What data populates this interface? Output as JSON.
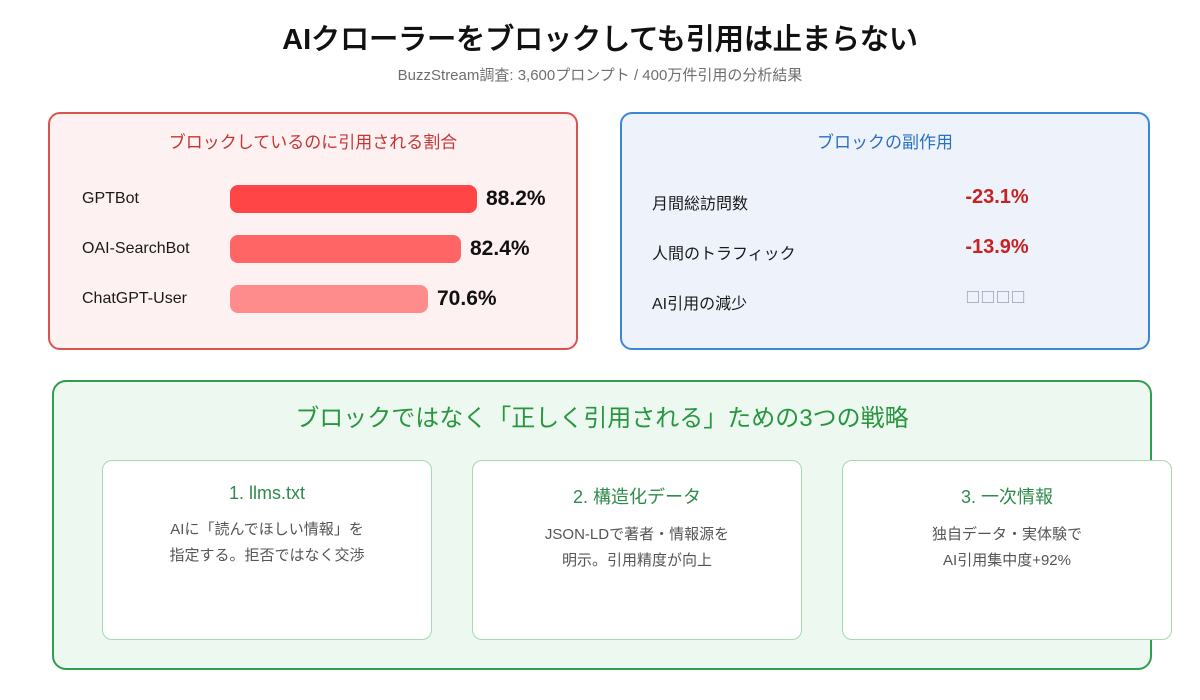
{
  "page": {
    "title": "AIクローラーをブロックしても引用は止まらない",
    "subtitle": "BuzzStream調査: 3,600プロンプト / 400万件引用の分析結果"
  },
  "colors": {
    "red_border": "#d9534f",
    "red_bg": "#fef1f1",
    "red_heading": "#c63434",
    "blue_border": "#3a87d8",
    "blue_bg": "#eef3fb",
    "blue_heading": "#2a6fc0",
    "green_border": "#2f9e50",
    "green_bg": "#edf9f0",
    "green_heading": "#27963f",
    "negative_value": "#c62222",
    "tofu_gray": "#9aa3b2"
  },
  "block_rates_panel": {
    "title": "ブロックしているのに引用される割合",
    "bars": [
      {
        "label": "GPTBot",
        "value": 88.2,
        "display": "88.2%",
        "color": "#ff4545"
      },
      {
        "label": "OAI-SearchBot",
        "value": 82.4,
        "display": "82.4%",
        "color": "#ff6565"
      },
      {
        "label": "ChatGPT-User",
        "value": 70.6,
        "display": "70.6%",
        "color": "#ff8c8c"
      }
    ]
  },
  "side_effects_panel": {
    "title": "ブロックの副作用",
    "rows": [
      {
        "label": "月間総訪問数",
        "value": "-23.1%"
      },
      {
        "label": "人間のトラフィック",
        "value": "-13.9%"
      },
      {
        "label": "AI引用の減少",
        "value": "□□□□",
        "muted": true
      }
    ]
  },
  "strategies_panel": {
    "title": "ブロックではなく「正しく引用される」ための3つの戦略",
    "cards": [
      {
        "title": "1. llms.txt",
        "line1": "AIに「読んでほしい情報」を",
        "line2": "指定する。拒否ではなく交渉"
      },
      {
        "title": "2. 構造化データ",
        "line1": "JSON-LDで著者・情報源を",
        "line2": "明示。引用精度が向上"
      },
      {
        "title": "3. 一次情報",
        "line1": "独自データ・実体験で",
        "line2": "AI引用集中度+92%"
      }
    ]
  },
  "chart_data": [
    {
      "type": "bar",
      "orientation": "horizontal",
      "title": "ブロックしているのに引用される割合",
      "categories": [
        "GPTBot",
        "OAI-SearchBot",
        "ChatGPT-User"
      ],
      "values": [
        88.2,
        82.4,
        70.6
      ],
      "data_labels": [
        "88.2%",
        "82.4%",
        "70.6%"
      ],
      "unit": "%",
      "xlim": [
        0,
        100
      ],
      "bar_colors": [
        "#ff4545",
        "#ff6565",
        "#ff8c8c"
      ],
      "grid": false,
      "legend": false
    },
    {
      "type": "table",
      "title": "ブロックの副作用",
      "rows": [
        [
          "月間総訪問数",
          "-23.1%"
        ],
        [
          "人間のトラフィック",
          "-13.9%"
        ],
        [
          "AI引用の減少",
          "□□□□"
        ]
      ]
    }
  ]
}
